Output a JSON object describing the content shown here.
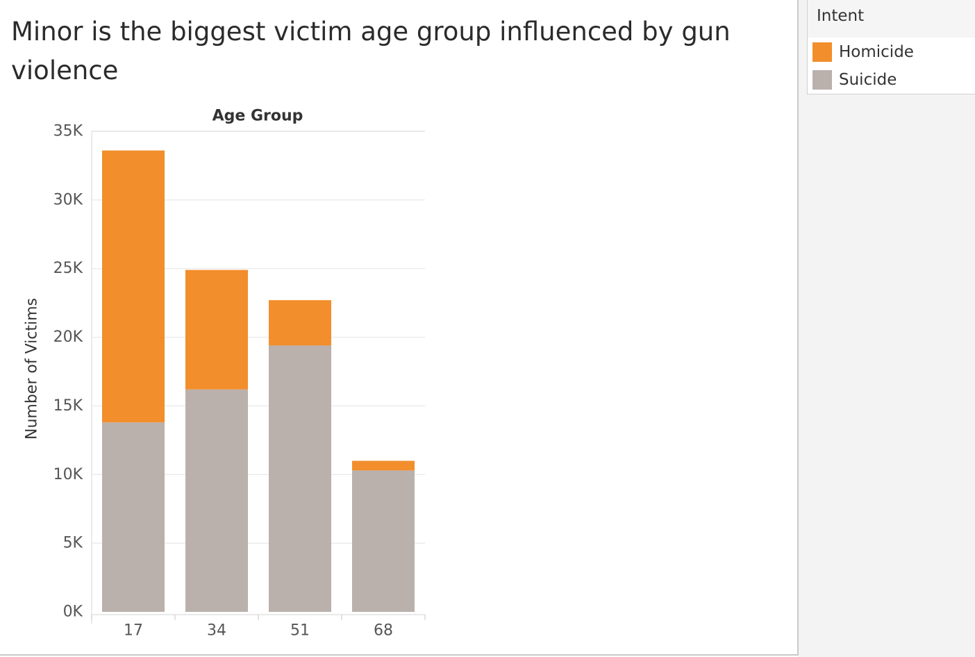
{
  "title": "Minor is the biggest victim age group influenced by gun violence",
  "legend": {
    "title": "Intent",
    "items": [
      {
        "label": "Homicide",
        "color": "#F28E2B"
      },
      {
        "label": "Suicide",
        "color": "#BAB0AC"
      }
    ]
  },
  "chart_data": {
    "type": "bar",
    "stacked": true,
    "title": "Minor is the biggest victim age group influenced by gun violence",
    "column_header": "Age Group",
    "xlabel": "",
    "ylabel": "Number of Victims",
    "categories": [
      "17",
      "34",
      "51",
      "68"
    ],
    "series": [
      {
        "name": "Suicide",
        "color": "#BAB0AC",
        "values": [
          13800,
          16200,
          19400,
          10300
        ]
      },
      {
        "name": "Homicide",
        "color": "#F28E2B",
        "values": [
          19800,
          8700,
          3300,
          700
        ]
      }
    ],
    "ylim": [
      0,
      35000
    ],
    "yticks": [
      0,
      5000,
      10000,
      15000,
      20000,
      25000,
      30000,
      35000
    ],
    "ytick_labels": [
      "0K",
      "5K",
      "10K",
      "15K",
      "20K",
      "25K",
      "30K",
      "35K"
    ],
    "grid": true,
    "legend_position": "top-right"
  }
}
